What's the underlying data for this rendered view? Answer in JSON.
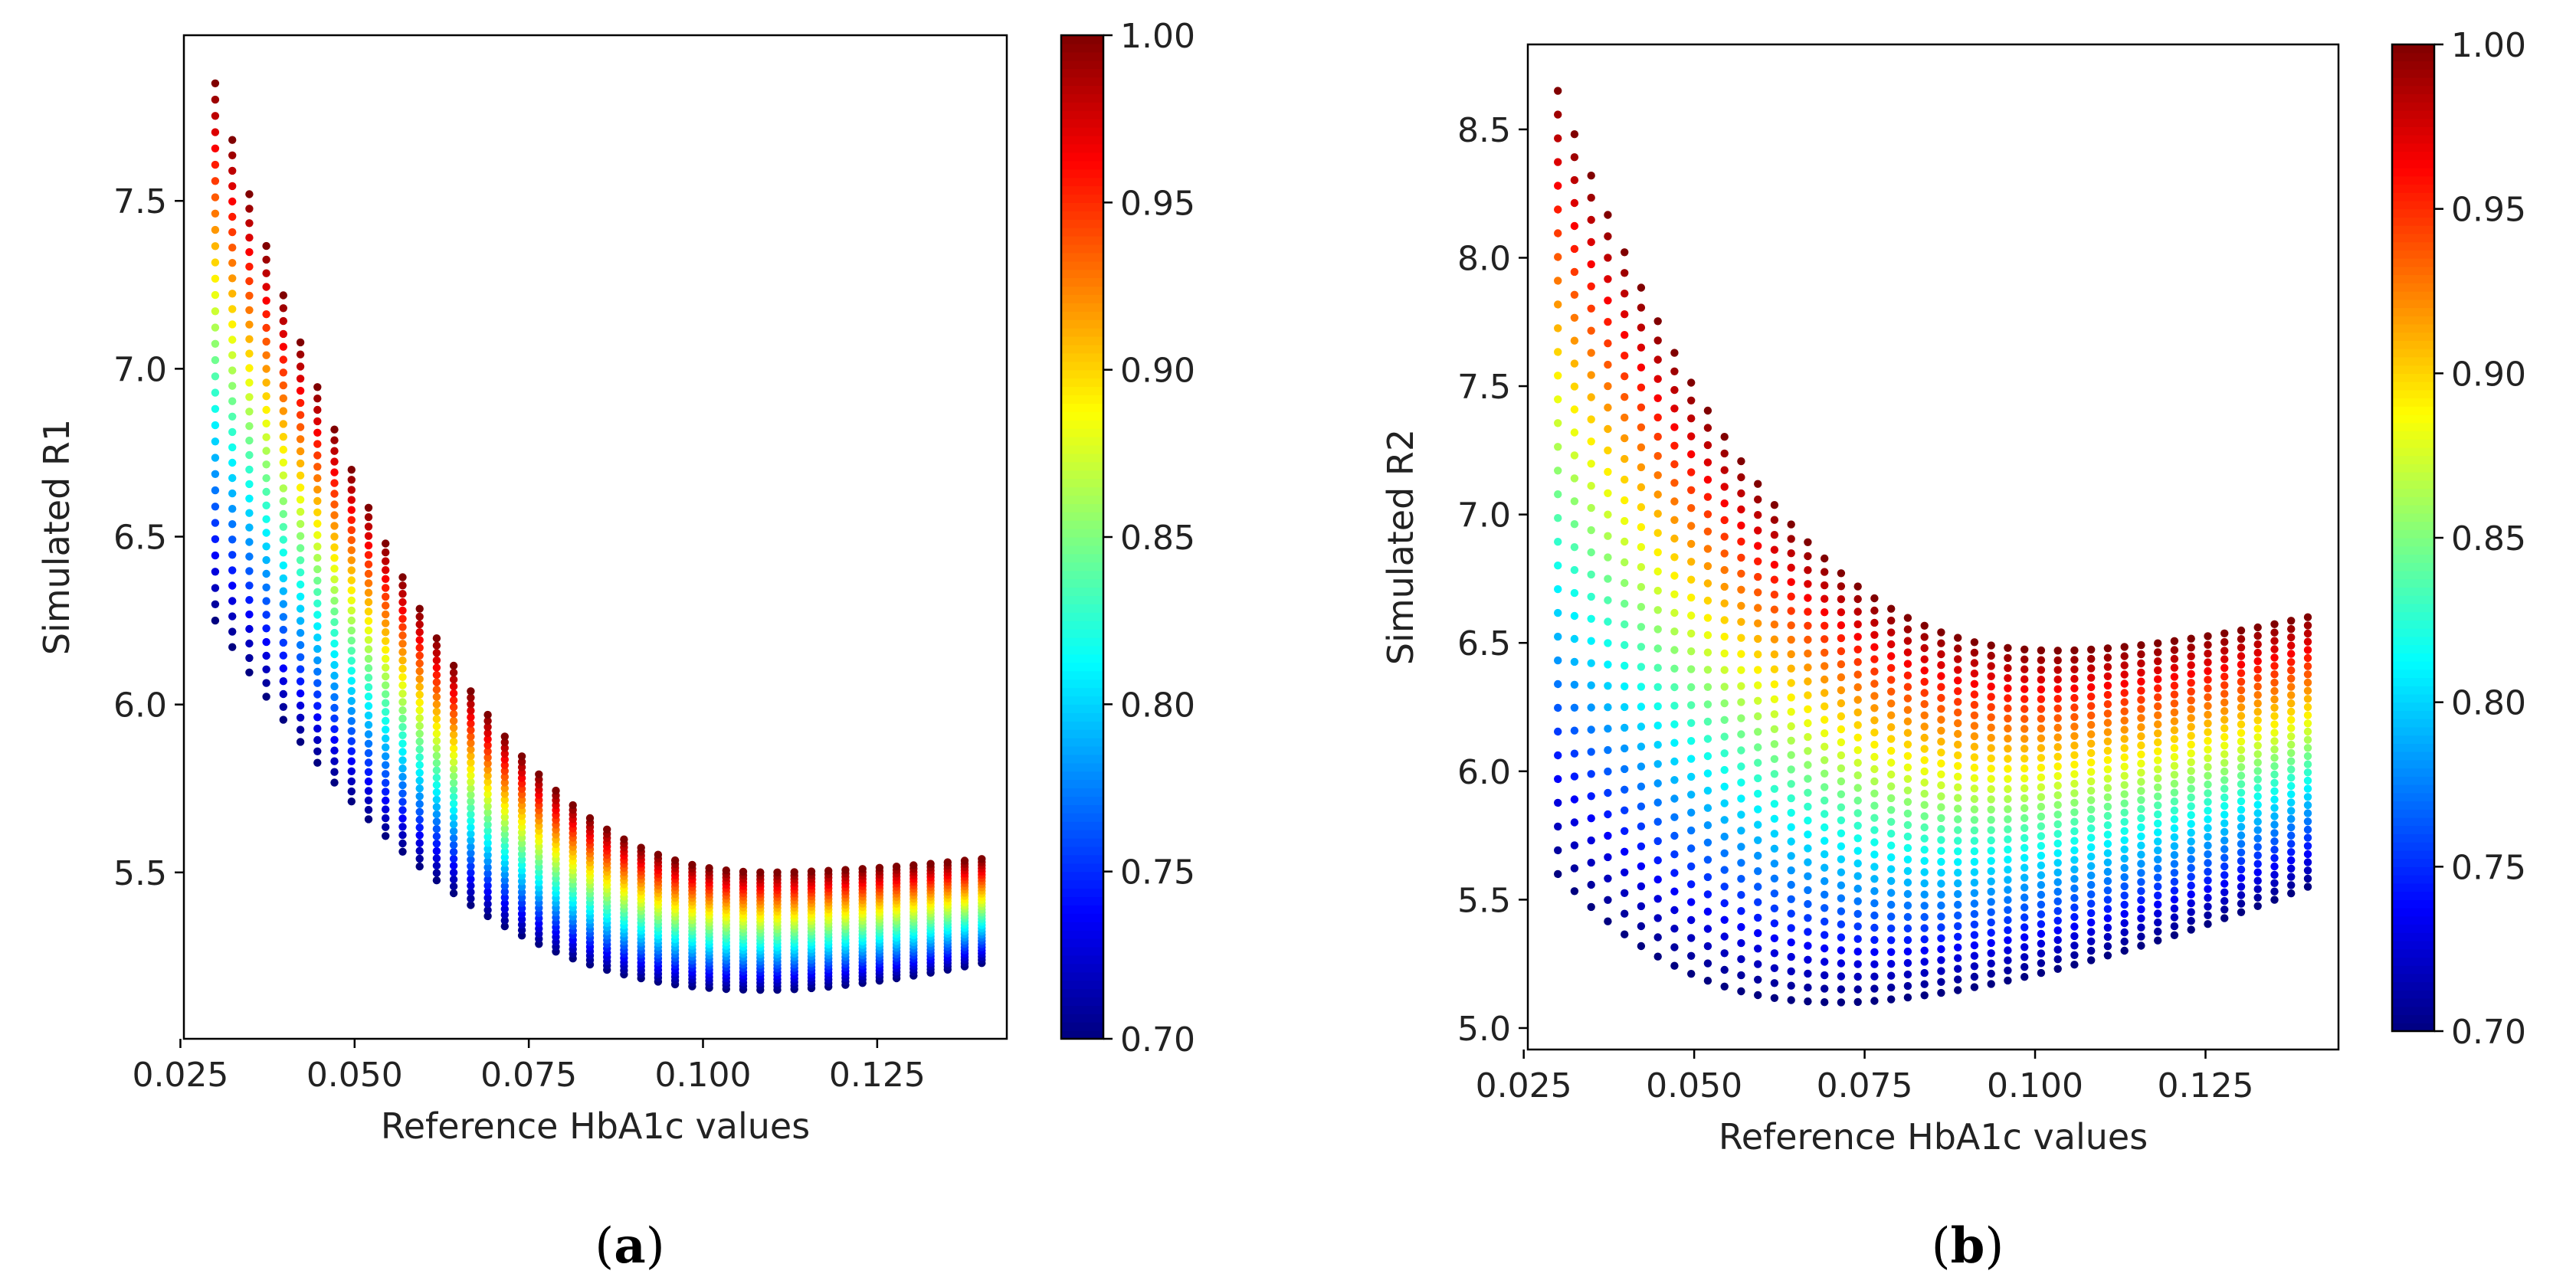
{
  "chart_data": [
    {
      "id": "a",
      "type": "scatter",
      "caption_open": "(",
      "caption_letter": "a",
      "caption_close": ")",
      "xlabel": "Reference HbA1c values",
      "ylabel": "Simulated R1",
      "xlim": [
        0.0255,
        0.1436
      ],
      "ylim": [
        5.0045,
        7.9933
      ],
      "xticks": [
        0.025,
        0.05,
        0.075,
        0.1,
        0.125
      ],
      "xtick_labels": [
        "0.025",
        "0.050",
        "0.075",
        "0.100",
        "0.125"
      ],
      "yticks": [
        5.5,
        6.0,
        6.5,
        7.0,
        7.5
      ],
      "ytick_labels": [
        "5.5",
        "6.0",
        "6.5",
        "7.0",
        "7.5"
      ],
      "x_range": [
        0.03,
        0.14
      ],
      "color_range": [
        0.7,
        1.0
      ],
      "model": {
        "x0": 0.03,
        "x_min": 0.11,
        "bottom": {
          "y0": 6.25,
          "y_min": 5.15,
          "y_end": 5.23
        },
        "top": {
          "y0": 7.85,
          "y_min": 5.5,
          "y_end": 5.54
        }
      },
      "colorbar": {
        "ticks": [
          0.7,
          0.75,
          0.8,
          0.85,
          0.9,
          0.95,
          1.0
        ],
        "tick_labels": [
          "0.70",
          "0.75",
          "0.80",
          "0.85",
          "0.90",
          "0.95",
          "1.00"
        ]
      }
    },
    {
      "id": "b",
      "type": "scatter",
      "caption_open": "(",
      "caption_letter": "b",
      "caption_close": ")",
      "xlabel": "Reference HbA1c values",
      "ylabel": "Simulated R2",
      "xlim": [
        0.0256,
        0.1445
      ],
      "ylim": [
        4.9163,
        8.8309
      ],
      "xticks": [
        0.025,
        0.05,
        0.075,
        0.1,
        0.125
      ],
      "xtick_labels": [
        "0.025",
        "0.050",
        "0.075",
        "0.100",
        "0.125"
      ],
      "yticks": [
        5.0,
        5.5,
        6.0,
        6.5,
        7.0,
        7.5,
        8.0,
        8.5
      ],
      "ytick_labels": [
        "5.0",
        "5.5",
        "6.0",
        "6.5",
        "7.0",
        "7.5",
        "8.0",
        "8.5"
      ],
      "x_range": [
        0.03,
        0.14
      ],
      "color_range": [
        0.7,
        1.0
      ],
      "model": {
        "x0": 0.03,
        "x_min": 0.1,
        "bottom": {
          "y0": 5.6,
          "y_min": 5.1,
          "y_end": 5.55,
          "x_min": 0.072
        },
        "top": {
          "y0": 8.65,
          "y_min": 6.47,
          "y_end": 6.6,
          "x_min": 0.104
        }
      },
      "colorbar": {
        "ticks": [
          0.7,
          0.75,
          0.8,
          0.85,
          0.9,
          0.95,
          1.0
        ],
        "tick_labels": [
          "0.70",
          "0.75",
          "0.80",
          "0.85",
          "0.90",
          "0.95",
          "1.00"
        ]
      }
    }
  ]
}
